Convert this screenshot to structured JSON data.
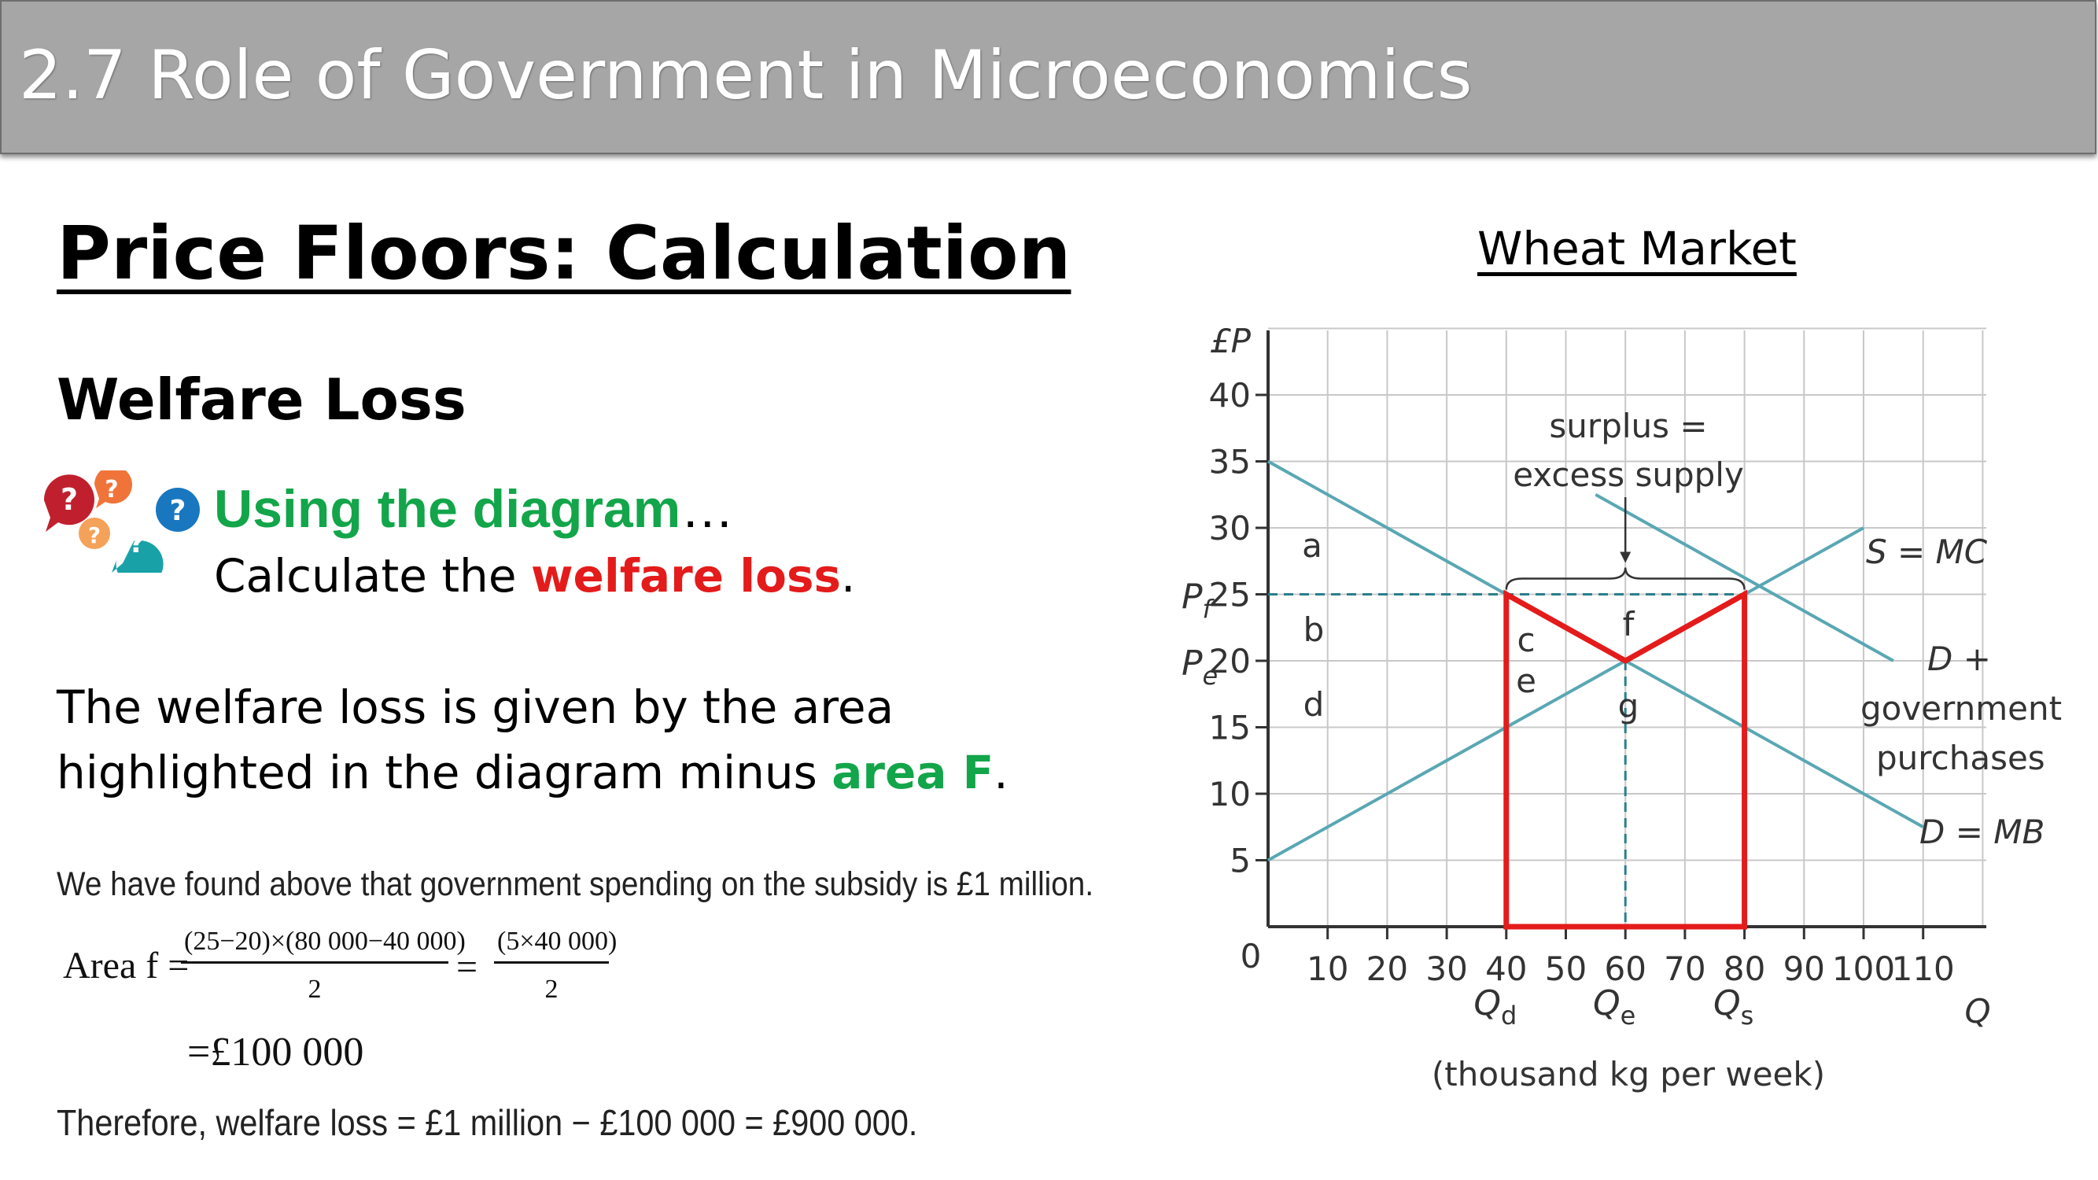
{
  "header": {
    "title": "2.7 Role of Government in Microeconomics"
  },
  "slide": {
    "title": "Price Floors: Calculation",
    "subtitle": "Welfare Loss",
    "prompt_icon": "question-speech-bubbles-icon",
    "prompt_heading": "Using the diagram",
    "prompt_ellipsis": "…",
    "prompt_prefix": "Calculate the ",
    "prompt_highlight": "welfare loss",
    "prompt_suffix": ".",
    "explanation_part1": "The welfare loss is given by the area highlighted in the diagram minus ",
    "explanation_highlight": "area F",
    "explanation_suffix": "."
  },
  "calculation": {
    "line1": "We have found above that government spending on the subsidy is £1 million.",
    "area_label": "Area f =",
    "fraction1_num": "(25−20)×(80 000−40 000)",
    "fraction1_den": "2",
    "equals": "=",
    "fraction2_num": "(5×40 000)",
    "fraction2_den": "2",
    "result": "=£100 000",
    "final": "Therefore, welfare loss = £1 million − £100 000 = £900 000."
  },
  "diagram": {
    "title": "Wheat Market",
    "y_axis_label": "£P",
    "x_axis_label": "Q",
    "x_unit_label": "(thousand kg per week)",
    "origin_label": "0",
    "x_ticks": [
      "10",
      "20",
      "30",
      "40",
      "50",
      "60",
      "70",
      "80",
      "90",
      "100",
      "110"
    ],
    "x_tick_values": [
      10,
      20,
      30,
      40,
      50,
      60,
      70,
      80,
      90,
      100,
      110
    ],
    "y_ticks": [
      "5",
      "10",
      "15",
      "20",
      "25",
      "30",
      "35",
      "40"
    ],
    "y_tick_values": [
      5,
      10,
      15,
      20,
      25,
      30,
      35,
      40
    ],
    "price_labels": {
      "pf": "P",
      "pf_sub": "f",
      "pe": "P",
      "pe_sub": "e"
    },
    "quantity_labels": {
      "qd": "Q",
      "qd_sub": "d",
      "qe": "Q",
      "qe_sub": "e",
      "qs": "Q",
      "qs_sub": "s"
    },
    "curve_labels": {
      "supply": "S = MC",
      "demand": "D = MB",
      "demand_gov_1": "D +",
      "demand_gov_2": "government",
      "demand_gov_3": "purchases"
    },
    "surplus_label_1": "surplus =",
    "surplus_label_2": "excess supply",
    "area_labels": [
      "a",
      "b",
      "c",
      "d",
      "e",
      "f",
      "g"
    ],
    "colors": {
      "curves": "#5aa7b3",
      "highlight": "#e41b1b",
      "grid": "#c8c8c8",
      "axis": "#333333"
    },
    "curves": {
      "supply": {
        "x1": 0,
        "y1": 5,
        "x2": 100,
        "y2": 30
      },
      "demand": {
        "x1": 0,
        "y1": 35,
        "x2": 110,
        "y2": 7.5
      },
      "demand_gov": {
        "x1": 55,
        "y1": 32.5,
        "x2": 105,
        "y2": 20
      }
    },
    "price_floor": 25,
    "equilibrium": {
      "q": 60,
      "p": 20
    },
    "qd": 40,
    "qs": 80
  }
}
